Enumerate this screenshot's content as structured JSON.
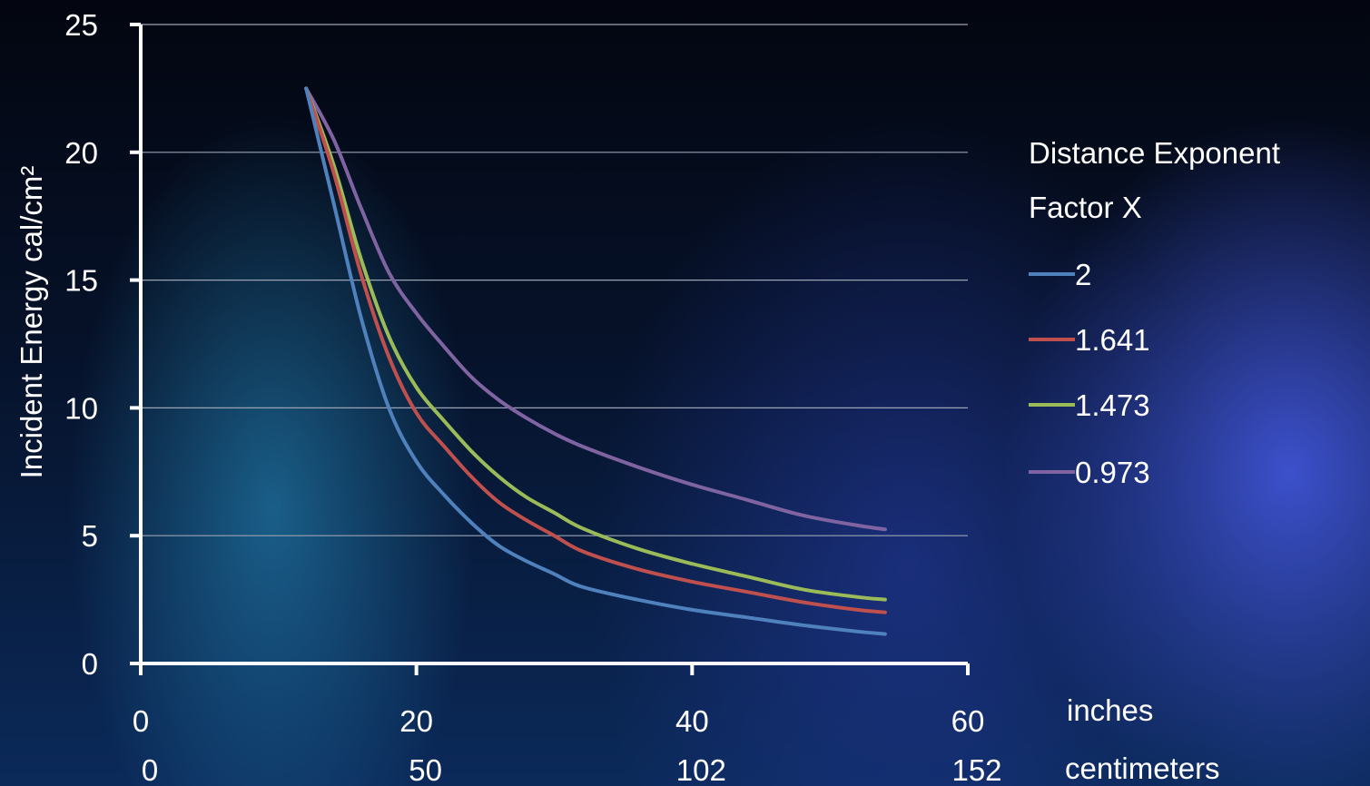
{
  "chart_data": {
    "type": "line",
    "ylabel": "Incident Energy cal/cm²",
    "ylim": [
      0,
      25
    ],
    "yticks": [
      0,
      5,
      10,
      15,
      20,
      25
    ],
    "xlim": [
      0,
      60
    ],
    "xticks": [
      0,
      20,
      40,
      60
    ],
    "xtick_labels_secondary": [
      "0",
      "50",
      "102",
      "152"
    ],
    "xlabel": "inches",
    "xlabel_secondary": "centimeters",
    "grid": true,
    "legend": {
      "title_line1": "Distance Exponent",
      "title_line2": "Factor  X",
      "placement": "right"
    },
    "series": [
      {
        "name": "2",
        "color": "#4f81bd",
        "points": [
          [
            12,
            22.5
          ],
          [
            14,
            18.0
          ],
          [
            16,
            13.5
          ],
          [
            18,
            10.0
          ],
          [
            20,
            7.9
          ],
          [
            22,
            6.6
          ],
          [
            24,
            5.5
          ],
          [
            26,
            4.6
          ],
          [
            28,
            4.0
          ],
          [
            30,
            3.5
          ],
          [
            32,
            3.0
          ],
          [
            36,
            2.5
          ],
          [
            40,
            2.1
          ],
          [
            44,
            1.8
          ],
          [
            48,
            1.5
          ],
          [
            52,
            1.25
          ],
          [
            54,
            1.15
          ]
        ]
      },
      {
        "name": "1.641",
        "color": "#c0504d",
        "points": [
          [
            12,
            22.5
          ],
          [
            14,
            19.2
          ],
          [
            16,
            15.2
          ],
          [
            18,
            12.0
          ],
          [
            20,
            9.8
          ],
          [
            22,
            8.5
          ],
          [
            24,
            7.3
          ],
          [
            26,
            6.3
          ],
          [
            28,
            5.6
          ],
          [
            30,
            5.0
          ],
          [
            32,
            4.4
          ],
          [
            36,
            3.7
          ],
          [
            40,
            3.2
          ],
          [
            44,
            2.8
          ],
          [
            48,
            2.4
          ],
          [
            52,
            2.1
          ],
          [
            54,
            2.0
          ]
        ]
      },
      {
        "name": "1.473",
        "color": "#9bbb59",
        "points": [
          [
            12,
            22.5
          ],
          [
            14,
            19.5
          ],
          [
            16,
            15.8
          ],
          [
            18,
            12.8
          ],
          [
            20,
            10.8
          ],
          [
            22,
            9.5
          ],
          [
            24,
            8.3
          ],
          [
            26,
            7.3
          ],
          [
            28,
            6.5
          ],
          [
            30,
            5.9
          ],
          [
            32,
            5.3
          ],
          [
            36,
            4.5
          ],
          [
            40,
            3.9
          ],
          [
            44,
            3.4
          ],
          [
            48,
            2.9
          ],
          [
            52,
            2.6
          ],
          [
            54,
            2.5
          ]
        ]
      },
      {
        "name": "0.973",
        "color": "#8064a2",
        "points": [
          [
            12,
            22.5
          ],
          [
            14,
            20.5
          ],
          [
            16,
            17.8
          ],
          [
            18,
            15.3
          ],
          [
            20,
            13.7
          ],
          [
            22,
            12.4
          ],
          [
            24,
            11.2
          ],
          [
            26,
            10.3
          ],
          [
            28,
            9.6
          ],
          [
            30,
            9.0
          ],
          [
            32,
            8.5
          ],
          [
            36,
            7.7
          ],
          [
            40,
            7.0
          ],
          [
            44,
            6.4
          ],
          [
            48,
            5.8
          ],
          [
            52,
            5.4
          ],
          [
            54,
            5.25
          ]
        ]
      }
    ]
  }
}
